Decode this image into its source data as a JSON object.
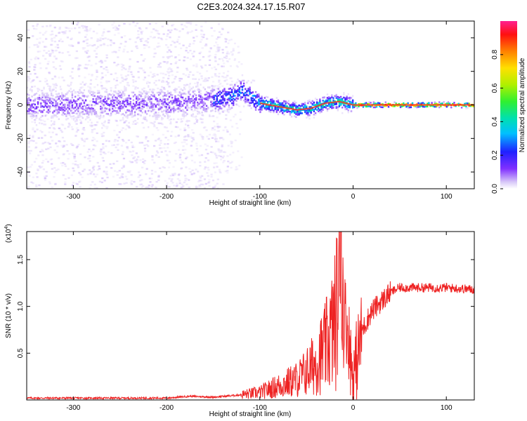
{
  "title": "C2E3.2024.324.17.15.R07",
  "chart_data": [
    {
      "type": "heatmap",
      "xlabel": "Height of straight line (km)",
      "ylabel": "Frequency (Hz)",
      "xlim": [
        -350,
        130
      ],
      "ylim": [
        -50,
        50
      ],
      "xticks": [
        -300,
        -200,
        -100,
        0,
        100
      ],
      "yticks": [
        -40,
        -20,
        0,
        20,
        40
      ],
      "colorbar": {
        "label": "Normalized spectral amplitude",
        "range": [
          0,
          1
        ],
        "ticks": [
          "0.0",
          "0.2",
          "0.4",
          "0.6",
          "0.8"
        ]
      },
      "centerline": [
        {
          "x": -350,
          "y": 0
        },
        {
          "x": -200,
          "y": 1
        },
        {
          "x": -150,
          "y": 3
        },
        {
          "x": -130,
          "y": 5
        },
        {
          "x": -120,
          "y": 9
        },
        {
          "x": -110,
          "y": 5
        },
        {
          "x": -100,
          "y": 1
        },
        {
          "x": -80,
          "y": -1
        },
        {
          "x": -60,
          "y": -3
        },
        {
          "x": -45,
          "y": -2
        },
        {
          "x": -30,
          "y": 1
        },
        {
          "x": -15,
          "y": 2
        },
        {
          "x": 0,
          "y": 0
        },
        {
          "x": 130,
          "y": 0
        }
      ]
    },
    {
      "type": "line",
      "xlabel": "Height of straight line (km)",
      "ylabel": "SNR (10 * v/v)",
      "multiplier": "(x10",
      "multiplier_exp": "4",
      "multiplier_close": ")",
      "xlim": [
        -350,
        130
      ],
      "ylim": [
        0,
        1.8
      ],
      "xticks": [
        -300,
        -200,
        -100,
        0,
        100
      ],
      "yticks": [
        "0.5",
        "1.0",
        "1.5"
      ],
      "series": [
        {
          "color": "#ee2222",
          "x": [
            -350,
            -300,
            -250,
            -200,
            -175,
            -150,
            -125,
            -100,
            -80,
            -60,
            -50,
            -40,
            -30,
            -20,
            -15,
            -10,
            -5,
            0,
            5,
            10,
            20,
            30,
            40,
            50,
            75,
            100,
            130
          ],
          "y": [
            0.02,
            0.02,
            0.02,
            0.02,
            0.04,
            0.03,
            0.05,
            0.08,
            0.15,
            0.22,
            0.3,
            0.4,
            0.55,
            0.8,
            1.2,
            1.0,
            0.7,
            0.2,
            0.5,
            0.75,
            0.95,
            1.05,
            1.15,
            1.2,
            1.2,
            1.2,
            1.18
          ]
        }
      ]
    }
  ]
}
